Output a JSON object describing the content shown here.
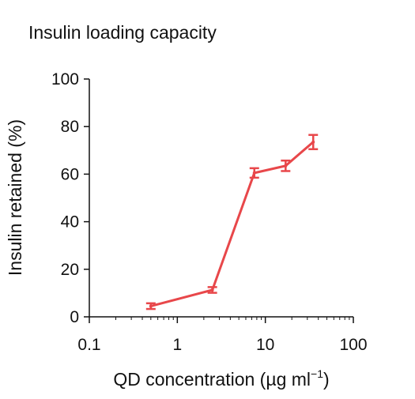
{
  "chart_data": {
    "type": "line",
    "title": "Insulin loading capacity",
    "xlabel_prefix": "QD concentration (µg ml",
    "xlabel_sup": "−1",
    "xlabel_suffix": ")",
    "ylabel": "Insulin retained (%)",
    "xscale": "log",
    "xlim": [
      0.1,
      100
    ],
    "ylim": [
      0,
      100
    ],
    "xticks": [
      0.1,
      1,
      10,
      100
    ],
    "xtick_labels": [
      "0.1",
      "1",
      "10",
      "100"
    ],
    "yticks": [
      0,
      20,
      40,
      60,
      80,
      100
    ],
    "ytick_labels": [
      "0",
      "20",
      "40",
      "60",
      "80",
      "100"
    ],
    "grid": false,
    "color": "#e8474a",
    "series": [
      {
        "x": [
          0.5,
          2.5,
          7.5,
          17,
          35
        ],
        "y": [
          4.5,
          11.3,
          60.5,
          63.5,
          73.5
        ],
        "err": [
          1.2,
          1.2,
          2.0,
          2.2,
          3.0
        ]
      }
    ]
  }
}
